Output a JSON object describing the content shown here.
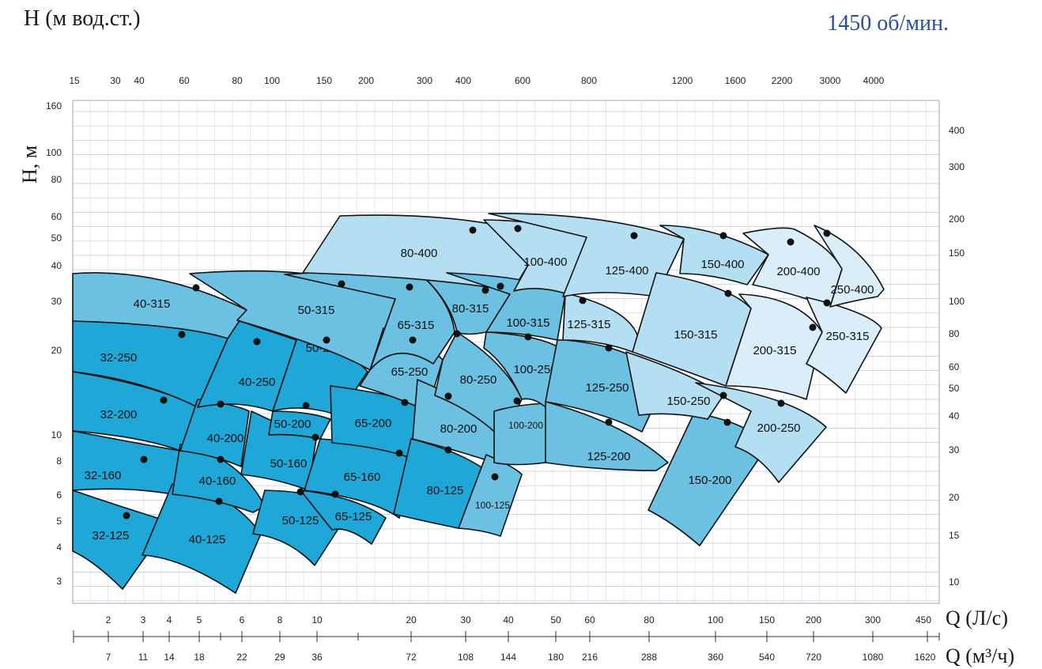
{
  "header": {
    "title": "H (м вод.ст.)",
    "speed": "1450 об/мин."
  },
  "chart_data": {
    "type": "area",
    "title": "",
    "ylabel": "H, м",
    "y_ticks_left": [
      "160",
      "100",
      "80",
      "60",
      "50",
      "40",
      "30",
      "20",
      "10",
      "8",
      "6",
      "5",
      "4",
      "3"
    ],
    "y_ticks_right": [
      "400",
      "300",
      "200",
      "150",
      "100",
      "80",
      "60",
      "50",
      "40",
      "30",
      "20",
      "15",
      "10"
    ],
    "top_ticks": [
      "15",
      "30",
      "40",
      "60",
      "80",
      "100",
      "150",
      "200",
      "300",
      "400",
      "600",
      "800",
      "1200",
      "1600",
      "2200",
      "3000",
      "4000"
    ],
    "q_ls_label": "Q (Л/с)",
    "q_ls_ticks": [
      "2",
      "3",
      "4",
      "5",
      "6",
      "8",
      "10",
      "20",
      "30",
      "40",
      "50",
      "60",
      "80",
      "100",
      "150",
      "200",
      "300",
      "450"
    ],
    "q_m3h_label": "Q (м³/ч)",
    "q_m3h_ticks": [
      "7",
      "11",
      "14",
      "18",
      "22",
      "29",
      "36",
      "72",
      "108",
      "144",
      "180",
      "216",
      "288",
      "360",
      "540",
      "720",
      "1080",
      "1620"
    ],
    "y_scale": "log",
    "x_scale": "log",
    "grid": true,
    "regions": [
      {
        "name": "32-125",
        "color": "#1fa7d8"
      },
      {
        "name": "32-160",
        "color": "#1fa7d8"
      },
      {
        "name": "32-200",
        "color": "#1fa7d8"
      },
      {
        "name": "32-250",
        "color": "#1fa7d8"
      },
      {
        "name": "40-125",
        "color": "#1fa7d8"
      },
      {
        "name": "40-160",
        "color": "#1fa7d8"
      },
      {
        "name": "40-200",
        "color": "#1fa7d8"
      },
      {
        "name": "40-250",
        "color": "#1fa7d8"
      },
      {
        "name": "40-315",
        "color": "#6cc0e2"
      },
      {
        "name": "50-125",
        "color": "#1fa7d8"
      },
      {
        "name": "50-160",
        "color": "#1fa7d8"
      },
      {
        "name": "50-200",
        "color": "#1fa7d8"
      },
      {
        "name": "50-250",
        "color": "#1fa7d8"
      },
      {
        "name": "50-315",
        "color": "#6cc0e2"
      },
      {
        "name": "65-125",
        "color": "#1fa7d8"
      },
      {
        "name": "65-160",
        "color": "#1fa7d8"
      },
      {
        "name": "65-200",
        "color": "#1fa7d8"
      },
      {
        "name": "65-250",
        "color": "#6cc0e2"
      },
      {
        "name": "65-315",
        "color": "#6cc0e2"
      },
      {
        "name": "80-125",
        "color": "#1fa7d8"
      },
      {
        "name": "80-200",
        "color": "#6cc0e2"
      },
      {
        "name": "80-250",
        "color": "#6cc0e2"
      },
      {
        "name": "80-315",
        "color": "#6cc0e2"
      },
      {
        "name": "80-400",
        "color": "#b4dff3"
      },
      {
        "name": "100-125",
        "color": "#6cc0e2"
      },
      {
        "name": "100-200",
        "color": "#6cc0e2"
      },
      {
        "name": "100-250",
        "color": "#6cc0e2"
      },
      {
        "name": "100-315",
        "color": "#6cc0e2"
      },
      {
        "name": "100-400",
        "color": "#b4dff3"
      },
      {
        "name": "125-200",
        "color": "#6cc0e2"
      },
      {
        "name": "125-250",
        "color": "#6cc0e2"
      },
      {
        "name": "125-315",
        "color": "#b4dff3"
      },
      {
        "name": "125-400",
        "color": "#b4dff3"
      },
      {
        "name": "150-200",
        "color": "#6cc0e2"
      },
      {
        "name": "150-250",
        "color": "#b4dff3"
      },
      {
        "name": "150-315",
        "color": "#b4dff3"
      },
      {
        "name": "150-400",
        "color": "#b4dff3"
      },
      {
        "name": "200-250",
        "color": "#b4dff3"
      },
      {
        "name": "200-315",
        "color": "#daeef9"
      },
      {
        "name": "200-400",
        "color": "#daeef9"
      },
      {
        "name": "250-315",
        "color": "#daeef9"
      },
      {
        "name": "250-400",
        "color": "#daeef9"
      }
    ]
  }
}
